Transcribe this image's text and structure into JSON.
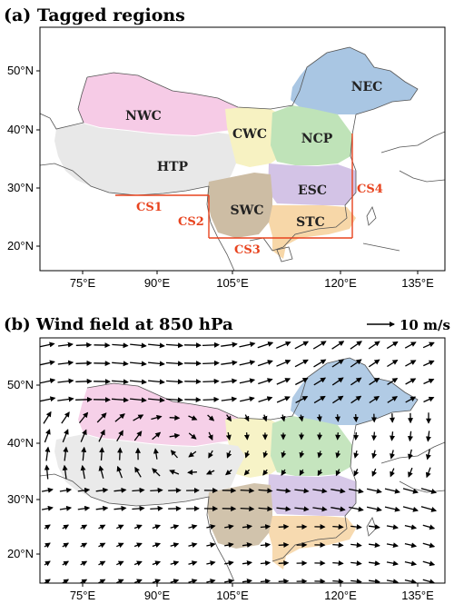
{
  "panel_a": {
    "title": "(a) Tagged regions",
    "regions": [
      {
        "label": "NEC",
        "color": "#a9c6e3"
      },
      {
        "label": "NWC",
        "color": "#f6cbe6"
      },
      {
        "label": "CWC",
        "color": "#f7f2c2"
      },
      {
        "label": "NCP",
        "color": "#bfe3b8"
      },
      {
        "label": "HTP",
        "color": "#e8e8e8"
      },
      {
        "label": "ESC",
        "color": "#d3c3e6"
      },
      {
        "label": "SWC",
        "color": "#cdbda4"
      },
      {
        "label": "STC",
        "color": "#f7d7a8"
      }
    ],
    "cross_sections": [
      {
        "label": "CS1"
      },
      {
        "label": "CS2"
      },
      {
        "label": "CS3"
      },
      {
        "label": "CS4"
      }
    ],
    "cs_color": "#e8431e"
  },
  "panel_b": {
    "title": "(b) Wind field at 850 hPa",
    "scale_label": "10 m/s"
  },
  "axes": {
    "lon_ticks": [
      "75°E",
      "90°E",
      "105°E",
      "120°E",
      "135°E"
    ],
    "lat_ticks": [
      "50°N",
      "40°N",
      "30°N",
      "20°N"
    ]
  }
}
